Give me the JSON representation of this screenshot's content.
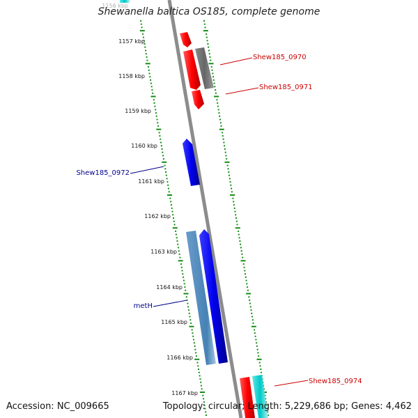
{
  "title": "Shewanella baltica OS185, complete genome",
  "footer": {
    "accession": "Accession: NC_009665",
    "summary": "Topology: circular; Length: 5,229,686 bp; Genes: 4,462"
  },
  "colors": {
    "forward_red": "#ff0000",
    "reverse_red": "#ff0000",
    "forward_blue": "#0000ee",
    "reverse_steel": "#4682b4",
    "grey_gene": "#666666",
    "cyan_gene": "#00c8c8",
    "ruler_green": "#138c13",
    "backbone": "#8c8c8c",
    "red_label": "#cc0000",
    "blue_label": "#00008b"
  },
  "ruler_labels": [
    "1156 kbp",
    "1157 kbp",
    "1158 kbp",
    "1159 kbp",
    "1160 kbp",
    "1161 kbp",
    "1162 kbp",
    "1163 kbp",
    "1164 kbp",
    "1165 kbp",
    "1166 kbp",
    "1167 kbp"
  ],
  "gene_labels": {
    "shew0970": "Shew185_0970",
    "shew0971": "Shew185_0971",
    "shew0972": "Shew185_0972",
    "meth": "metH",
    "shew0974": "Shew185_0974"
  }
}
